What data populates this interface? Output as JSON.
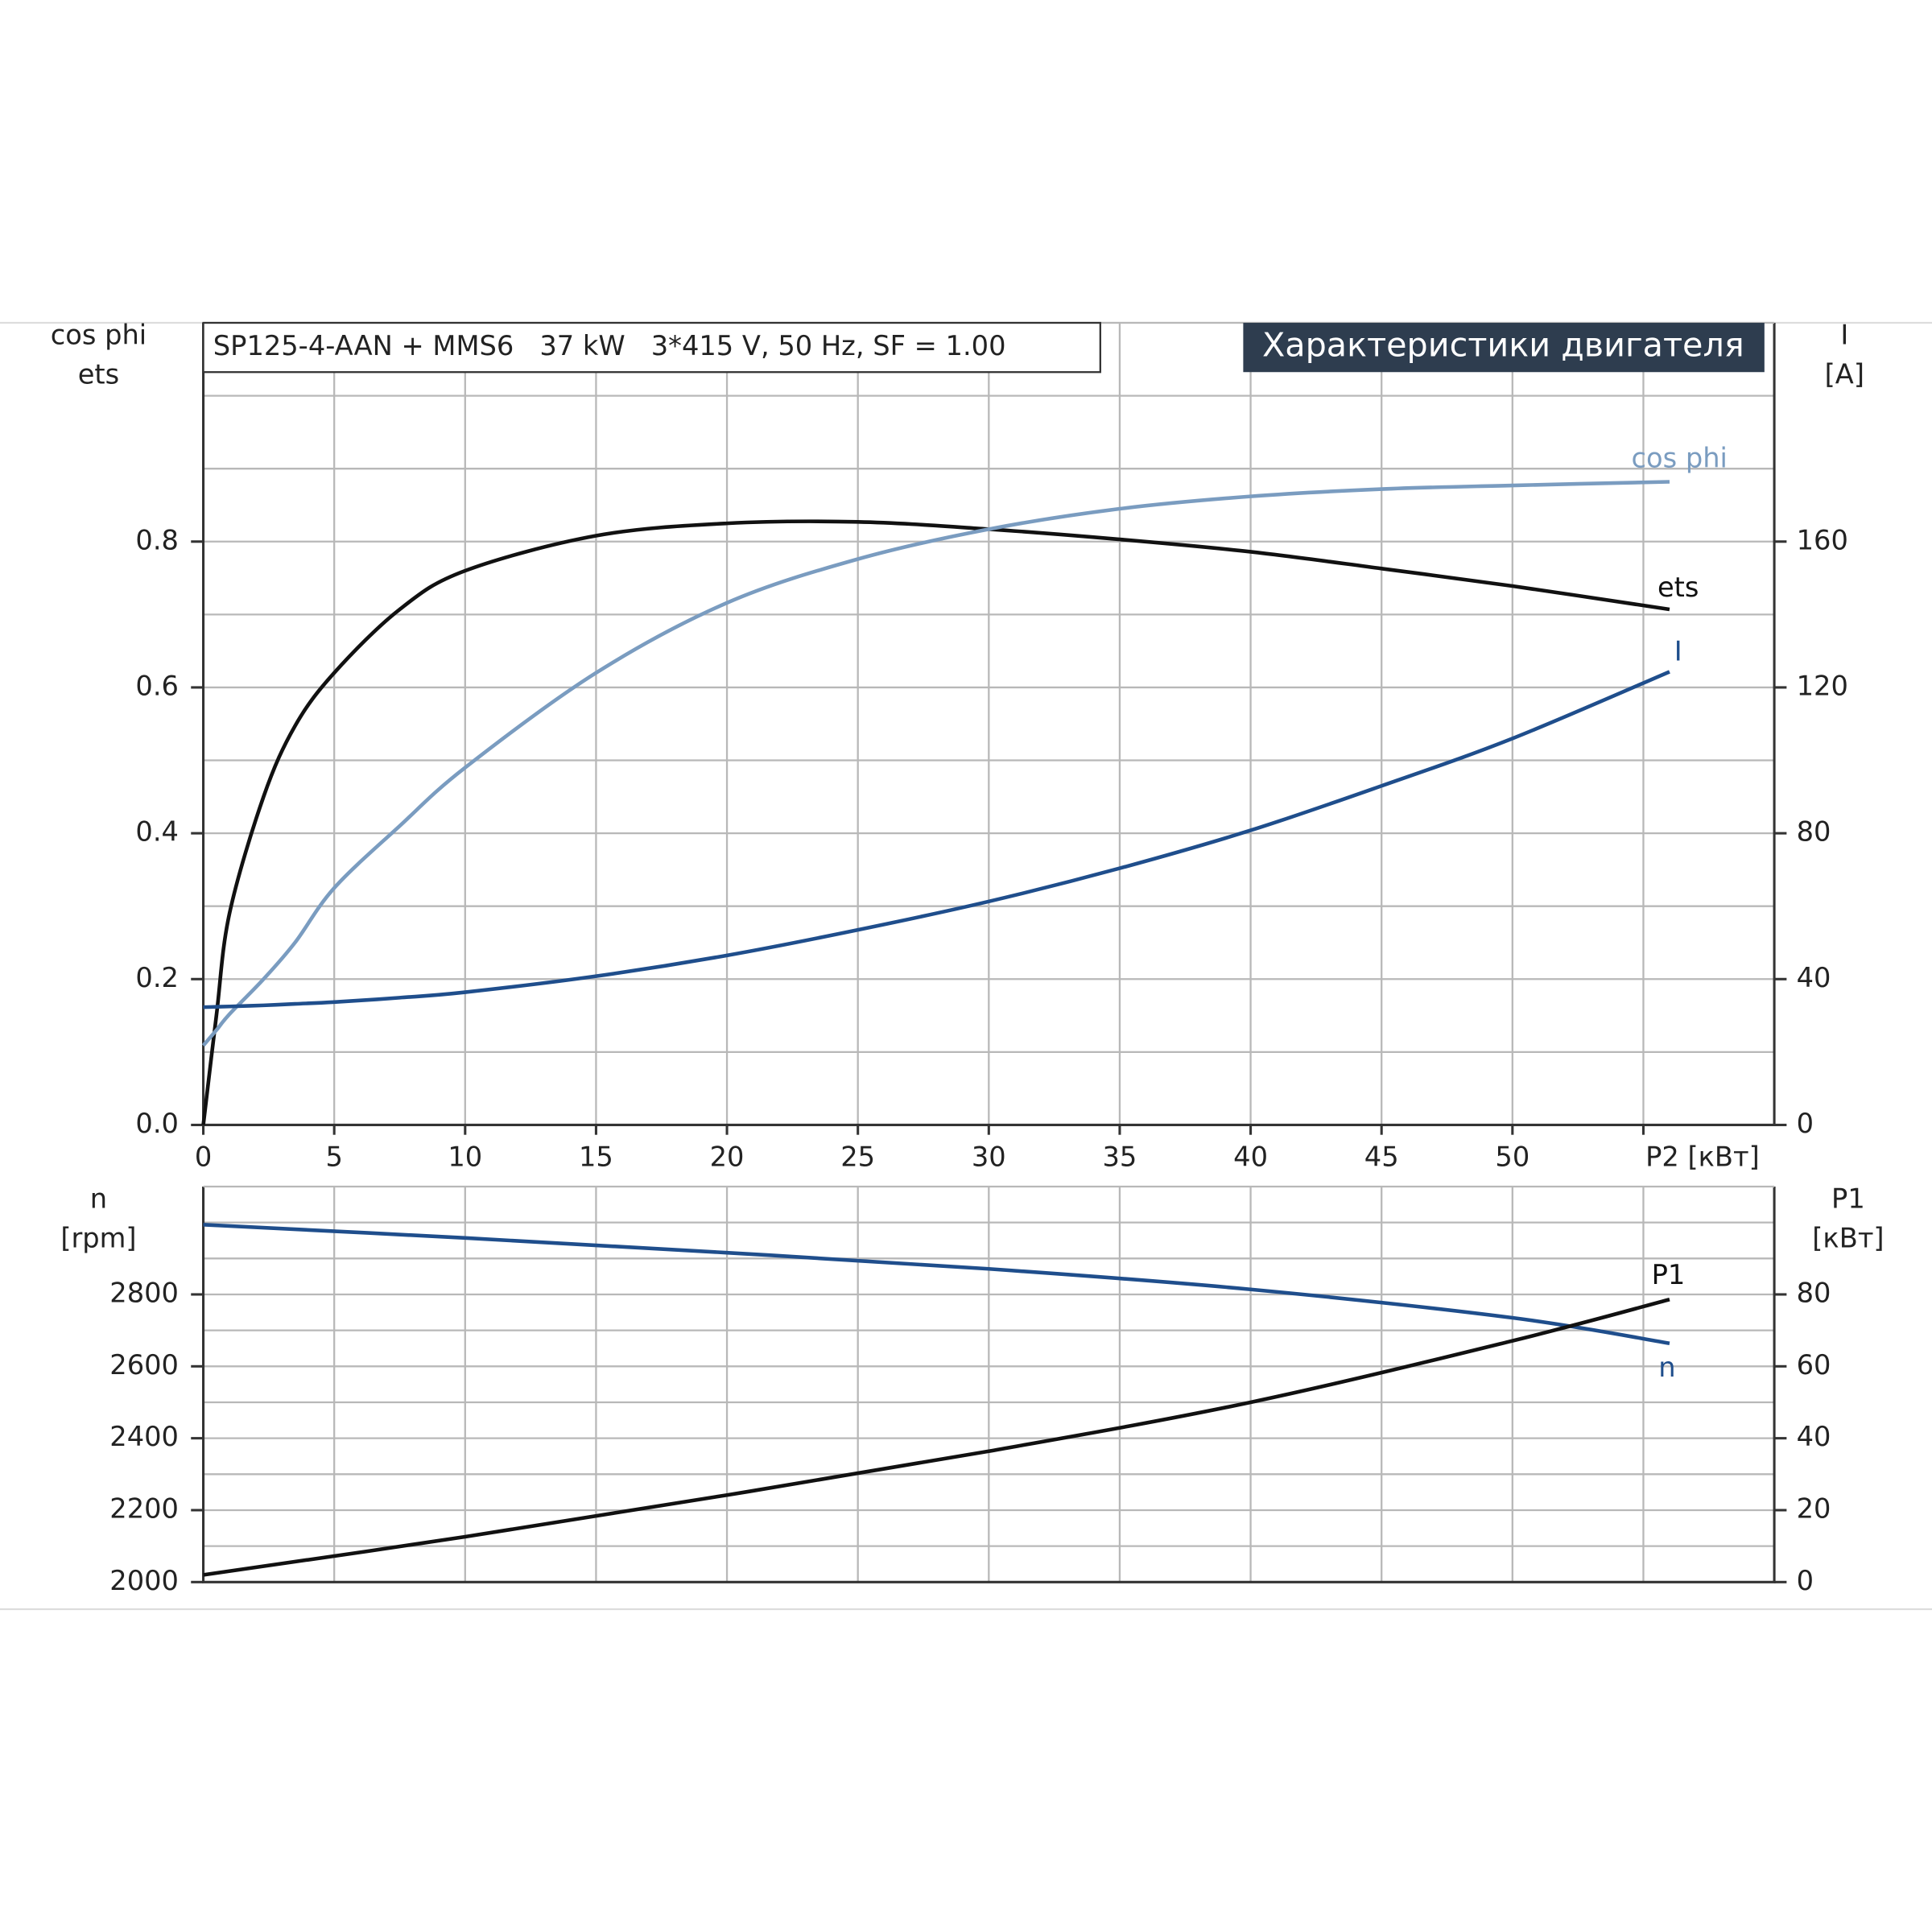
{
  "chart_data": [
    {
      "type": "line",
      "title": "SP125-4-AAN + MMS6   37 kW   3*415 V, 50 Hz, SF = 1.00",
      "header": "Характеристики двигателя",
      "y_title": [
        "cos phi",
        "ets"
      ],
      "y2_title": [
        "I",
        "[A]"
      ],
      "x": [
        0,
        0.5,
        1,
        2.3,
        3.5,
        5,
        7.5,
        10,
        15,
        20,
        25,
        30,
        35,
        40,
        45,
        50,
        56
      ],
      "xlim": [
        0,
        60
      ],
      "xticks": [
        0,
        5,
        10,
        15,
        20,
        25,
        30,
        35,
        40,
        45,
        50,
        {
          "value": 55,
          "label": "P2 [кВт]"
        }
      ],
      "ylim": [
        0,
        1.1
      ],
      "yticks": [
        {
          "value": 0,
          "label": "0.0"
        },
        0.2,
        0.4,
        0.6,
        0.8
      ],
      "y_minor_grid": [
        0.1,
        0.3,
        0.5,
        0.7,
        0.9,
        1.0
      ],
      "y2lim": [
        0,
        220
      ],
      "y2ticks": [
        0,
        40,
        80,
        120,
        160
      ],
      "grid": true,
      "series": [
        {
          "name": "ets",
          "color": "#111111",
          "values": [
            0,
            0.15,
            0.29,
            0.45,
            0.547,
            0.62,
            0.707,
            0.76,
            0.808,
            0.825,
            0.827,
            0.817,
            0.803,
            0.786,
            0.763,
            0.739,
            0.707
          ]
        },
        {
          "name": "cos phi",
          "color": "#7a9cc0",
          "values": [
            0.109,
            0.13,
            0.152,
            0.2,
            0.25,
            0.325,
            0.41,
            0.49,
            0.62,
            0.716,
            0.776,
            0.817,
            0.845,
            0.862,
            0.872,
            0.877,
            0.882
          ]
        },
        {
          "name": "I",
          "color": "#1f4e8c",
          "axis": "y2",
          "values": [
            32.3,
            32.4,
            32.5,
            32.8,
            33.2,
            33.7,
            34.9,
            36.4,
            40.8,
            46.5,
            53.5,
            61.3,
            70.4,
            80.8,
            93,
            106,
            124.3
          ]
        }
      ]
    },
    {
      "type": "line",
      "y_title": [
        "n",
        "[rpm]"
      ],
      "y2_title": [
        "P1",
        "[кВт]"
      ],
      "x": [
        0,
        10,
        20,
        30,
        40,
        50,
        56
      ],
      "xlim": [
        0,
        60
      ],
      "x_grid": [
        5,
        10,
        15,
        20,
        25,
        30,
        35,
        40,
        45,
        50,
        55
      ],
      "ylim": [
        2000,
        3100
      ],
      "yticks": [
        2000,
        2200,
        2400,
        2600,
        2800
      ],
      "y_minor_grid": [
        2100,
        2300,
        2500,
        2700,
        2900,
        3000
      ],
      "y2lim": [
        0,
        110
      ],
      "y2ticks": [
        0,
        20,
        40,
        60,
        80
      ],
      "grid": true,
      "series": [
        {
          "name": "n",
          "color": "#1f4e8c",
          "values": [
            2994,
            2957,
            2916,
            2871,
            2814,
            2735,
            2664
          ]
        },
        {
          "name": "P1",
          "color": "#111111",
          "axis": "y2",
          "values": [
            2.0,
            12.6,
            24.2,
            36.4,
            50,
            67.1,
            78.6
          ]
        }
      ]
    }
  ]
}
